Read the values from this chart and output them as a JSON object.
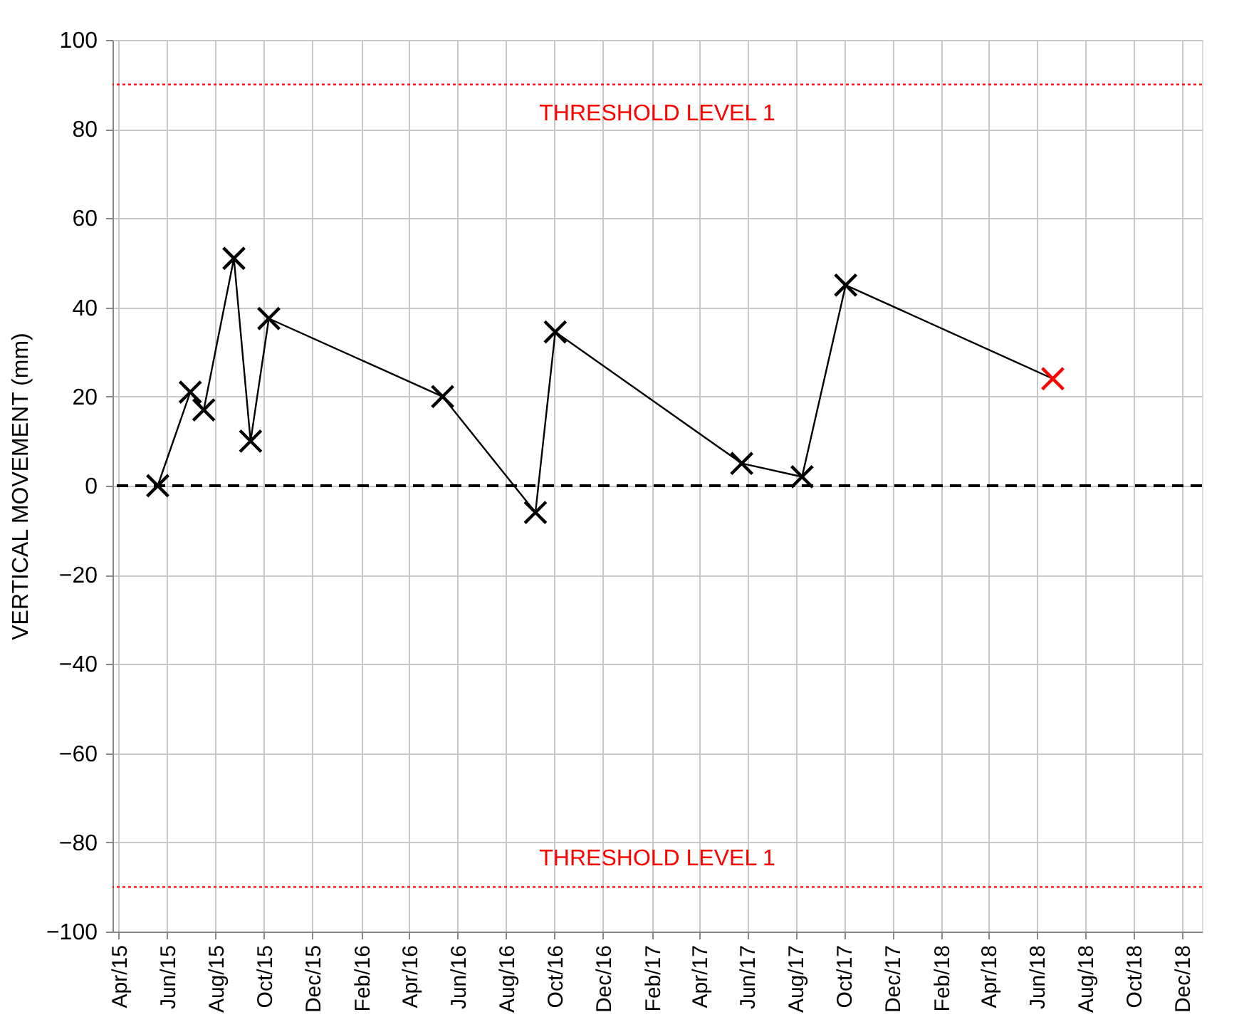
{
  "chart_data": {
    "type": "line",
    "ylabel": "VERTICAL MOVEMENT (mm)",
    "x": [
      "2015-05-20",
      "2015-06-30",
      "2015-07-17",
      "2015-08-24",
      "2015-09-14",
      "2015-10-07",
      "2016-05-13",
      "2016-09-07",
      "2016-10-02",
      "2017-05-25",
      "2017-08-09",
      "2017-10-03",
      "2018-06-21"
    ],
    "series": [
      {
        "color": "#000000",
        "colors": [
          "#000000",
          "#000000",
          "#000000",
          "#000000",
          "#000000",
          "#000000",
          "#000000",
          "#000000",
          "#000000",
          "#000000",
          "#000000",
          "#000000",
          "#ff0000"
        ],
        "values": [
          0,
          21,
          17,
          51,
          10,
          37.5,
          20,
          -6,
          34.5,
          5,
          2,
          45,
          24
        ]
      }
    ],
    "marker": "cross",
    "line_style": "solid",
    "ylim": [
      -100,
      100
    ],
    "yticks": [
      -100,
      -80,
      -60,
      -40,
      -20,
      0,
      20,
      40,
      60,
      80,
      100
    ],
    "xlim": [
      "2015-03-24",
      "2018-12-26"
    ],
    "xticks": [
      {
        "value": "2015-04-01",
        "label": "Apr/15"
      },
      {
        "value": "2015-06-01",
        "label": "Jun/15"
      },
      {
        "value": "2015-08-01",
        "label": "Aug/15"
      },
      {
        "value": "2015-10-01",
        "label": "Oct/15"
      },
      {
        "value": "2015-12-01",
        "label": "Dec/15"
      },
      {
        "value": "2016-02-01",
        "label": "Feb/16"
      },
      {
        "value": "2016-04-01",
        "label": "Apr/16"
      },
      {
        "value": "2016-06-01",
        "label": "Jun/16"
      },
      {
        "value": "2016-08-01",
        "label": "Aug/16"
      },
      {
        "value": "2016-10-01",
        "label": "Oct/16"
      },
      {
        "value": "2016-12-01",
        "label": "Dec/16"
      },
      {
        "value": "2017-02-01",
        "label": "Feb/17"
      },
      {
        "value": "2017-04-01",
        "label": "Apr/17"
      },
      {
        "value": "2017-06-01",
        "label": "Jun/17"
      },
      {
        "value": "2017-08-01",
        "label": "Aug/17"
      },
      {
        "value": "2017-10-01",
        "label": "Oct/17"
      },
      {
        "value": "2017-12-01",
        "label": "Dec/17"
      },
      {
        "value": "2018-02-01",
        "label": "Feb/18"
      },
      {
        "value": "2018-04-01",
        "label": "Apr/18"
      },
      {
        "value": "2018-06-01",
        "label": "Jun/18"
      },
      {
        "value": "2018-08-01",
        "label": "Aug/18"
      },
      {
        "value": "2018-10-01",
        "label": "Oct/18"
      },
      {
        "value": "2018-12-01",
        "label": "Dec/18"
      }
    ],
    "ref_lines": [
      {
        "axis": "y",
        "value": 90,
        "label": "THRESHOLD LEVEL 1",
        "color": "#ff0000",
        "line_style": "dotted"
      },
      {
        "axis": "y",
        "value": -90,
        "label": "THRESHOLD LEVEL 1",
        "color": "#ff0000",
        "line_style": "dotted"
      },
      {
        "axis": "y",
        "value": 0,
        "color": "#000000",
        "line_style": "dashed"
      }
    ],
    "grid": true
  }
}
